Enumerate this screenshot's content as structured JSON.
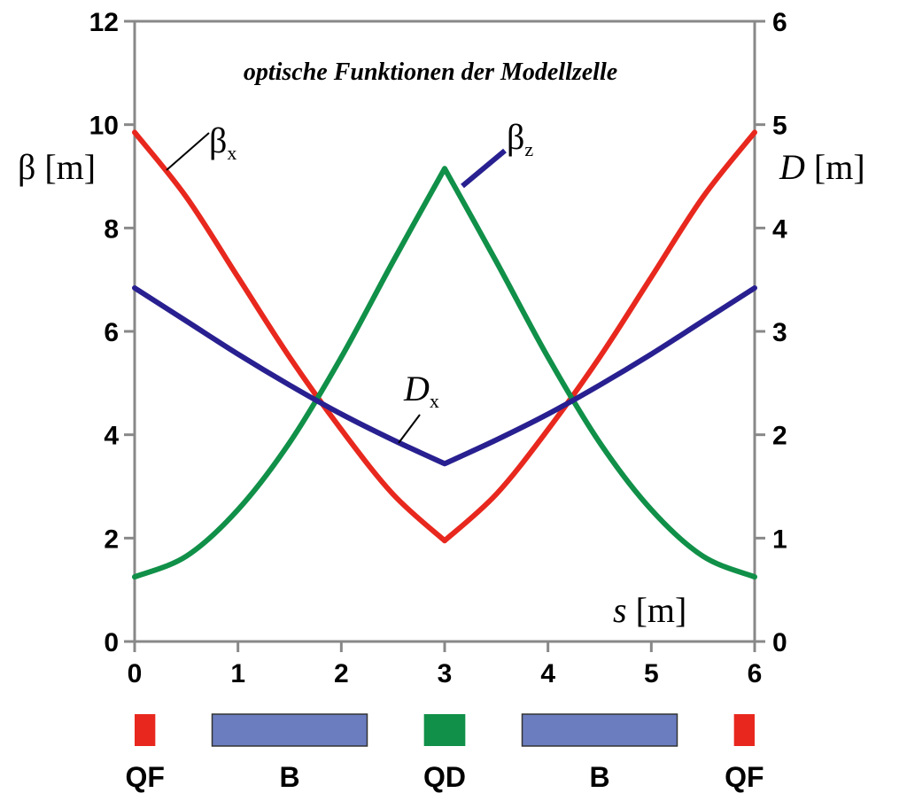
{
  "chart_data": {
    "type": "line",
    "title": "optische Funktionen der Modellzelle",
    "xlabel": {
      "var": "s",
      "unit": "[m]"
    },
    "ylabel_left": {
      "var": "β",
      "unit": "[m]"
    },
    "ylabel_right": {
      "var": "D",
      "unit": "[m]"
    },
    "xlim": [
      0,
      6
    ],
    "ylim_left": [
      0,
      12
    ],
    "ylim_right": [
      0,
      6
    ],
    "x_ticks": [
      "0",
      "1",
      "2",
      "3",
      "4",
      "5",
      "6"
    ],
    "y_ticks_left": [
      "0",
      "2",
      "4",
      "6",
      "8",
      "10",
      "12"
    ],
    "y_ticks_right": [
      "0",
      "1",
      "2",
      "3",
      "4",
      "5",
      "6"
    ],
    "grid": false,
    "series": [
      {
        "name": "βx",
        "label_main": "β",
        "label_sub": "x",
        "axis": "left",
        "color": "#e8281e",
        "x": [
          0,
          0.5,
          1.0,
          1.5,
          2.0,
          2.5,
          3.0,
          3.5,
          4.0,
          4.5,
          5.0,
          5.5,
          6.0
        ],
        "y": [
          9.85,
          8.6,
          7.05,
          5.5,
          4.1,
          2.85,
          1.95,
          2.85,
          4.1,
          5.5,
          7.05,
          8.6,
          9.85
        ]
      },
      {
        "name": "βz",
        "label_main": "β",
        "label_sub": "z",
        "axis": "left",
        "color": "#109048",
        "x": [
          0,
          0.5,
          1.0,
          1.5,
          2.0,
          2.5,
          3.0,
          3.5,
          4.0,
          4.5,
          5.0,
          5.5,
          6.0
        ],
        "y": [
          1.25,
          1.65,
          2.55,
          3.85,
          5.5,
          7.35,
          9.15,
          7.35,
          5.5,
          3.85,
          2.55,
          1.65,
          1.25
        ]
      },
      {
        "name": "Dx",
        "label_main": "D",
        "label_sub": "x",
        "axis": "right",
        "color": "#282090",
        "x": [
          0,
          0.5,
          1.0,
          1.5,
          2.0,
          2.5,
          3.0,
          3.5,
          4.0,
          4.5,
          5.0,
          5.5,
          6.0
        ],
        "y": [
          3.42,
          3.1,
          2.78,
          2.48,
          2.2,
          1.95,
          1.72,
          1.95,
          2.2,
          2.48,
          2.78,
          3.1,
          3.42
        ]
      }
    ],
    "lattice": [
      {
        "label": "QF",
        "color": "#e8281e",
        "x_start": 0.0,
        "x_end": 0.2
      },
      {
        "label": "B",
        "color": "#6b7dbf",
        "x_start": 0.75,
        "x_end": 2.25
      },
      {
        "label": "QD",
        "color": "#109048",
        "x_start": 2.8,
        "x_end": 3.2
      },
      {
        "label": "B",
        "color": "#6b7dbf",
        "x_start": 3.75,
        "x_end": 5.25
      },
      {
        "label": "QF",
        "color": "#e8281e",
        "x_start": 5.8,
        "x_end": 6.0
      }
    ]
  }
}
